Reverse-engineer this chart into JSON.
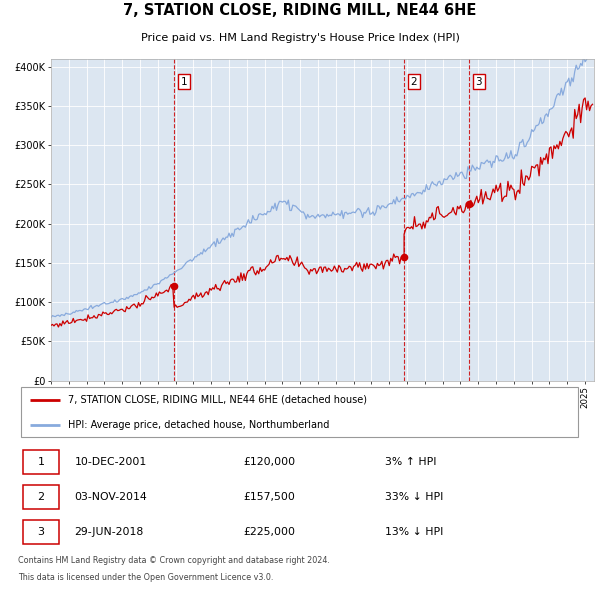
{
  "title": "7, STATION CLOSE, RIDING MILL, NE44 6HE",
  "subtitle": "Price paid vs. HM Land Registry's House Price Index (HPI)",
  "legend_line1": "7, STATION CLOSE, RIDING MILL, NE44 6HE (detached house)",
  "legend_line2": "HPI: Average price, detached house, Northumberland",
  "transactions": [
    {
      "num": 1,
      "date": "10-DEC-2001",
      "price": 120000,
      "pct": "3%",
      "dir": "↑",
      "year": 2001.92
    },
    {
      "num": 2,
      "date": "03-NOV-2014",
      "price": 157500,
      "pct": "33%",
      "dir": "↓",
      "year": 2014.84
    },
    {
      "num": 3,
      "date": "29-JUN-2018",
      "price": 225000,
      "pct": "13%",
      "dir": "↓",
      "year": 2018.49
    }
  ],
  "footnote1": "Contains HM Land Registry data © Crown copyright and database right 2024.",
  "footnote2": "This data is licensed under the Open Government Licence v3.0.",
  "house_color": "#cc0000",
  "hpi_color": "#88aadd",
  "plot_bg": "#dce6f1",
  "grid_color": "#ffffff",
  "ylim": [
    0,
    410000
  ],
  "xlim_start": 1995.0,
  "xlim_end": 2025.5,
  "yticks": [
    0,
    50000,
    100000,
    150000,
    200000,
    250000,
    300000,
    350000,
    400000
  ],
  "ylabels": [
    "£0",
    "£50K",
    "£100K",
    "£150K",
    "£200K",
    "£250K",
    "£300K",
    "£350K",
    "£400K"
  ]
}
